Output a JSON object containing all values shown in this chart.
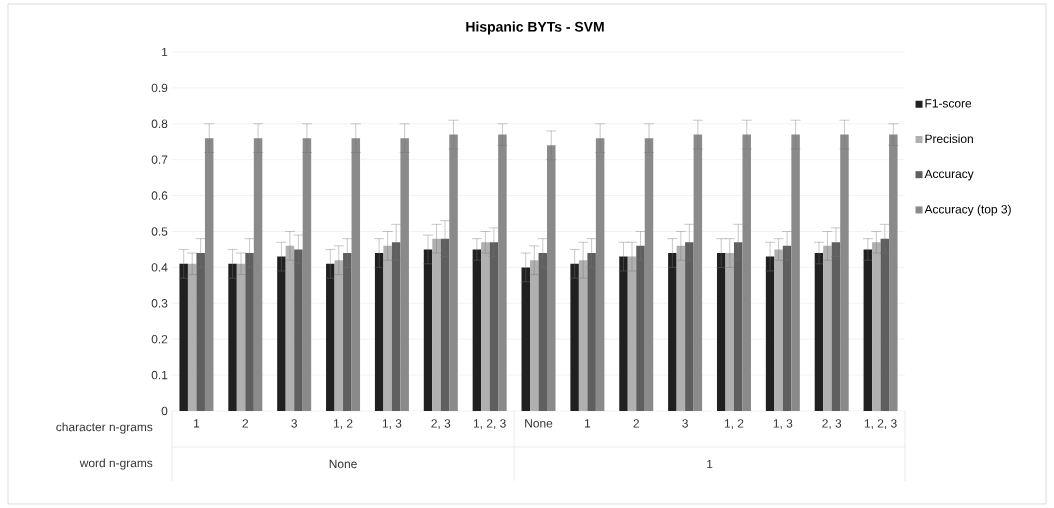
{
  "chart_data": {
    "type": "bar",
    "title": "Hispanic BYTs - SVM",
    "categories": [
      "1",
      "2",
      "3",
      "1, 2",
      "1, 3",
      "2, 3",
      "1, 2, 3",
      "None",
      "1",
      "2",
      "3",
      "1, 2",
      "1, 3",
      "2, 3",
      "1, 2, 3"
    ],
    "series": [
      {
        "name": "F1-score",
        "color": "#202020",
        "values": [
          0.41,
          0.41,
          0.43,
          0.41,
          0.44,
          0.45,
          0.45,
          0.4,
          0.41,
          0.43,
          0.44,
          0.44,
          0.43,
          0.44,
          0.45
        ],
        "errors": [
          0.04,
          0.04,
          0.04,
          0.04,
          0.04,
          0.04,
          0.03,
          0.04,
          0.04,
          0.04,
          0.04,
          0.04,
          0.04,
          0.03,
          0.03
        ]
      },
      {
        "name": "Precision",
        "color": "#b0b0b0",
        "values": [
          0.41,
          0.41,
          0.46,
          0.42,
          0.46,
          0.48,
          0.47,
          0.42,
          0.42,
          0.43,
          0.46,
          0.44,
          0.45,
          0.46,
          0.47
        ],
        "errors": [
          0.03,
          0.03,
          0.04,
          0.04,
          0.04,
          0.04,
          0.03,
          0.04,
          0.05,
          0.04,
          0.04,
          0.04,
          0.03,
          0.04,
          0.03
        ]
      },
      {
        "name": "Accuracy",
        "color": "#5f5f5f",
        "values": [
          0.44,
          0.44,
          0.45,
          0.44,
          0.47,
          0.48,
          0.47,
          0.44,
          0.44,
          0.46,
          0.47,
          0.47,
          0.46,
          0.47,
          0.48
        ],
        "errors": [
          0.04,
          0.04,
          0.04,
          0.04,
          0.05,
          0.05,
          0.04,
          0.04,
          0.04,
          0.04,
          0.05,
          0.05,
          0.04,
          0.04,
          0.04
        ]
      },
      {
        "name": "Accuracy (top 3)",
        "color": "#8a8a8a",
        "values": [
          0.76,
          0.76,
          0.76,
          0.76,
          0.76,
          0.77,
          0.77,
          0.74,
          0.76,
          0.76,
          0.77,
          0.77,
          0.77,
          0.77,
          0.77
        ],
        "errors": [
          0.04,
          0.04,
          0.04,
          0.04,
          0.04,
          0.04,
          0.03,
          0.04,
          0.04,
          0.04,
          0.04,
          0.04,
          0.04,
          0.04,
          0.03
        ]
      }
    ],
    "ylim": [
      0,
      1
    ],
    "yticks": [
      0,
      0.1,
      0.2,
      0.3,
      0.4,
      0.5,
      0.6,
      0.7,
      0.8,
      0.9,
      1
    ],
    "grid": "y",
    "legend": "right",
    "annotations": [
      "character n-grams",
      "word n-grams",
      "None",
      "1"
    ]
  }
}
